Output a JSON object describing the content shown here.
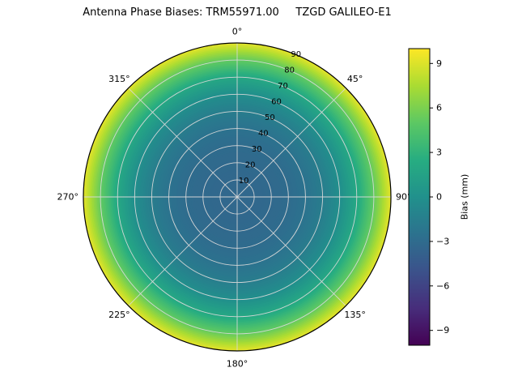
{
  "chart_data": {
    "type": "heatmap",
    "projection": "polar",
    "title": "Antenna Phase Biases: TRM55971.00     TZGD GALILEO-E1",
    "antenna": "TRM55971.00",
    "signal": "TZGD GALILEO-E1",
    "colormap": "viridis",
    "azimuthal_symmetry": true,
    "theta_ticks": [
      {
        "angle_deg": 0,
        "label": "0°"
      },
      {
        "angle_deg": 45,
        "label": "45°"
      },
      {
        "angle_deg": 90,
        "label": "90°"
      },
      {
        "angle_deg": 135,
        "label": "135°"
      },
      {
        "angle_deg": 180,
        "label": "180°"
      },
      {
        "angle_deg": 225,
        "label": "225°"
      },
      {
        "angle_deg": 270,
        "label": "270°"
      },
      {
        "angle_deg": 315,
        "label": "315°"
      }
    ],
    "radial_ticks": [
      {
        "zenith_deg": 10,
        "label": "10"
      },
      {
        "zenith_deg": 20,
        "label": "20"
      },
      {
        "zenith_deg": 30,
        "label": "30"
      },
      {
        "zenith_deg": 40,
        "label": "40"
      },
      {
        "zenith_deg": 50,
        "label": "50"
      },
      {
        "zenith_deg": 60,
        "label": "60"
      },
      {
        "zenith_deg": 70,
        "label": "70"
      },
      {
        "zenith_deg": 80,
        "label": "80"
      },
      {
        "zenith_deg": 90,
        "label": "90"
      }
    ],
    "radial_axis": {
      "max_zenith_deg": 90,
      "label_position_deg": 22.5
    },
    "series": {
      "name": "phase-bias-vs-zenith",
      "zenith_deg": [
        0,
        10,
        20,
        30,
        40,
        50,
        60,
        70,
        80,
        90
      ],
      "bias_mm": [
        -3.3,
        -3.3,
        -3.2,
        -3.0,
        -2.5,
        -1.6,
        -0.2,
        2.0,
        5.2,
        9.3
      ]
    },
    "colorbar": {
      "label": "Bias (mm)",
      "ticks": [
        9,
        6,
        3,
        0,
        -3,
        -6,
        -9
      ],
      "vmin": -10,
      "vmax": 10
    }
  },
  "colors": {
    "background": "#ffffff",
    "grid": "#d9d9d9",
    "outline": "#000000",
    "text": "#000000",
    "viridis_stops": [
      {
        "t": 0.0,
        "c": "#440154"
      },
      {
        "t": 0.125,
        "c": "#472d7b"
      },
      {
        "t": 0.25,
        "c": "#3b528b"
      },
      {
        "t": 0.375,
        "c": "#2c728e"
      },
      {
        "t": 0.5,
        "c": "#21918c"
      },
      {
        "t": 0.625,
        "c": "#27ad81"
      },
      {
        "t": 0.75,
        "c": "#5cc863"
      },
      {
        "t": 0.875,
        "c": "#aadc32"
      },
      {
        "t": 1.0,
        "c": "#fde725"
      }
    ]
  }
}
